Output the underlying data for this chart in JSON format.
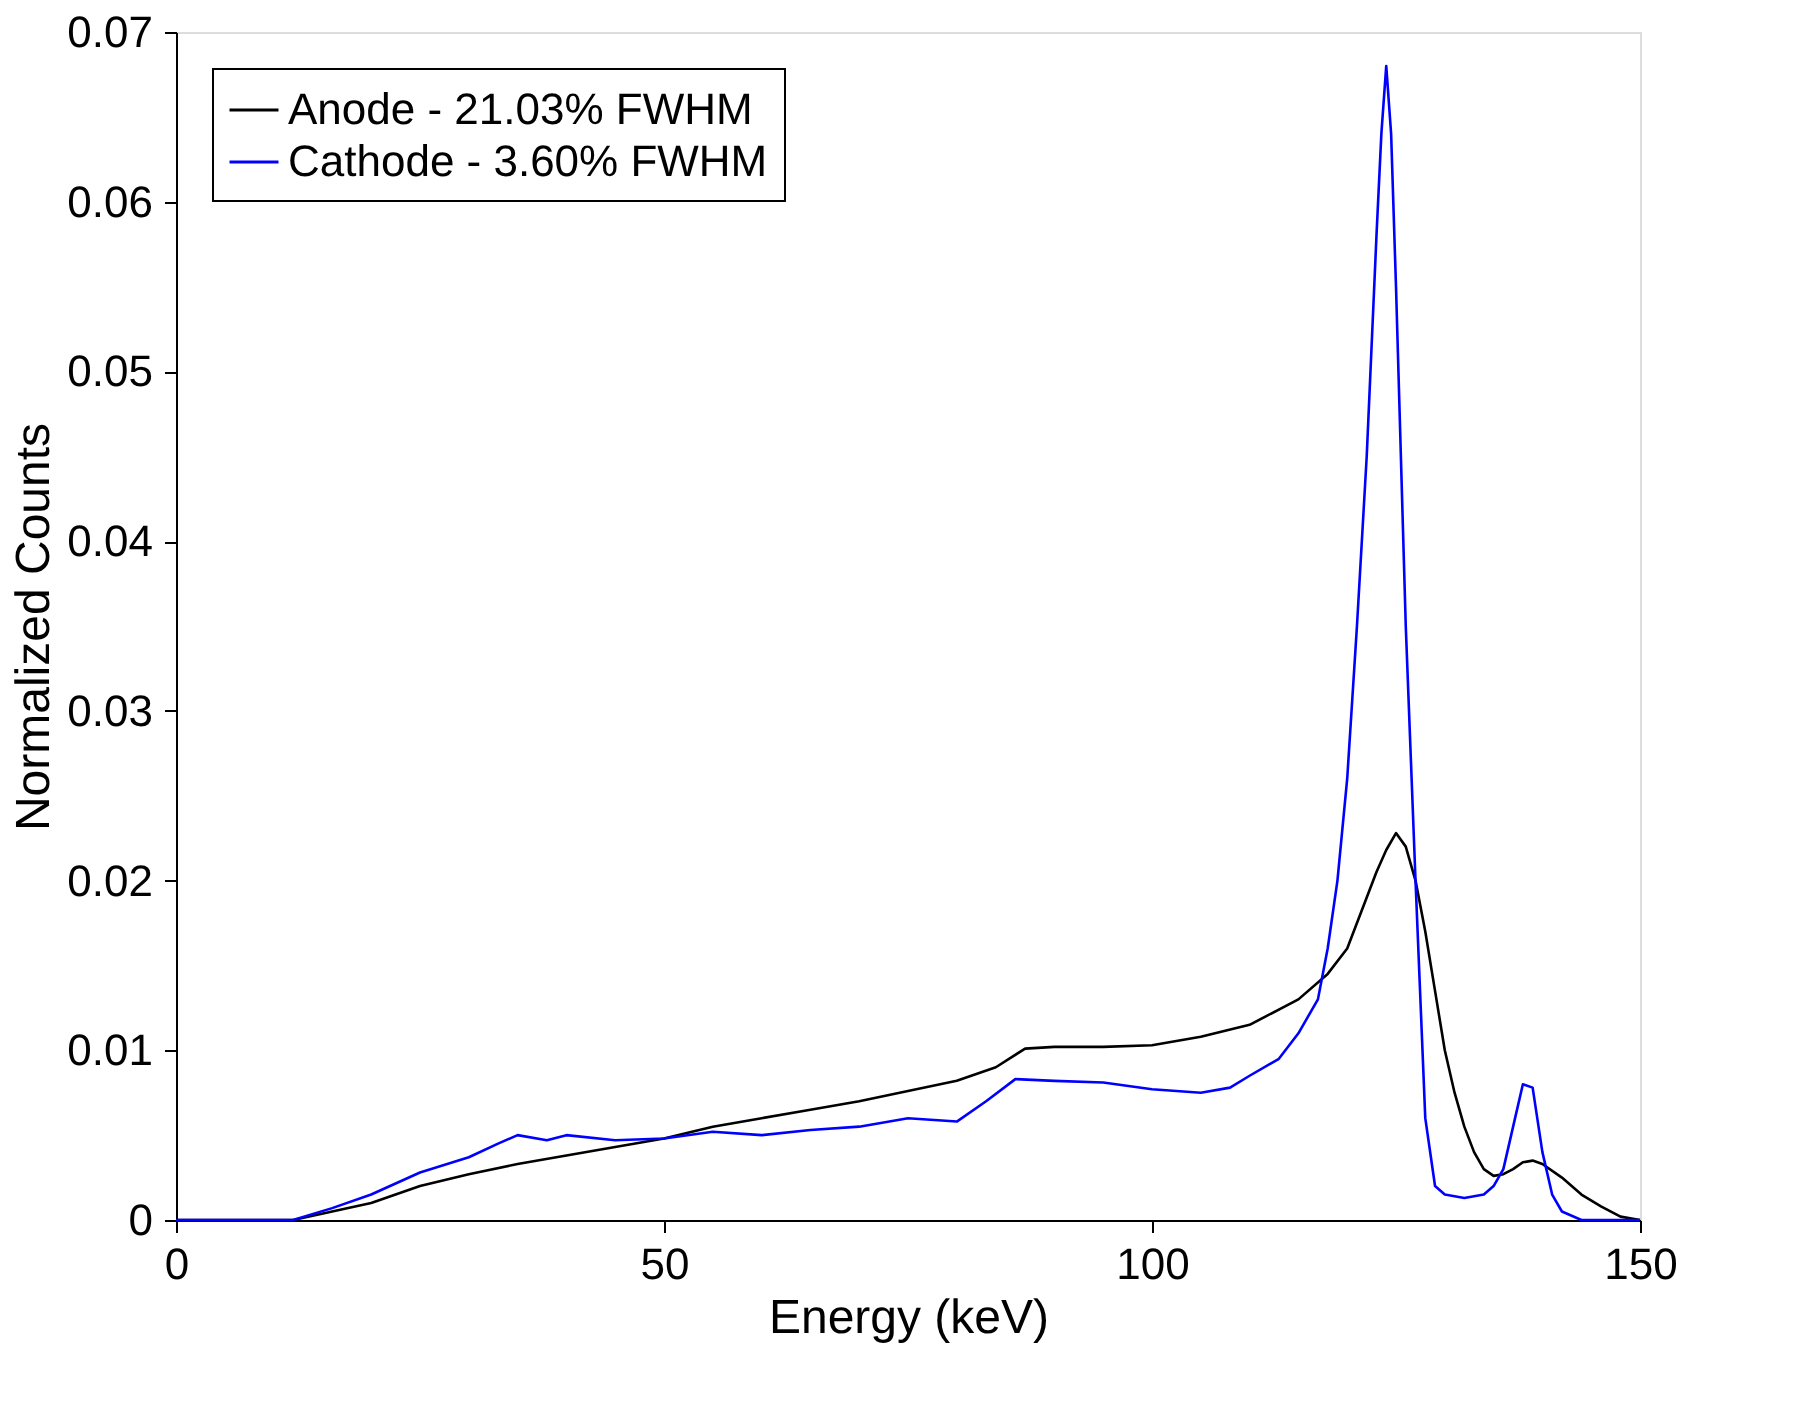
{
  "chart_data": {
    "type": "line",
    "xlabel": "Energy (keV)",
    "ylabel": "Normalized Counts",
    "xlim": [
      0,
      150
    ],
    "xticks": [
      0,
      50,
      100,
      150
    ],
    "ylim": [
      0,
      0.07
    ],
    "yticks": [
      0,
      0.01,
      0.02,
      0.03,
      0.04,
      0.05,
      0.06,
      0.07
    ],
    "grid": false,
    "legend": "top left",
    "marker": "none",
    "line_style": "solid",
    "series": [
      {
        "name": "Anode - 21.03% FWHM",
        "color": "#000000",
        "x": [
          0,
          12,
          16,
          20,
          25,
          30,
          35,
          40,
          45,
          50,
          55,
          60,
          65,
          70,
          75,
          80,
          84,
          87,
          90,
          95,
          100,
          105,
          110,
          115,
          118,
          120,
          122,
          123,
          124,
          125,
          126,
          127,
          128,
          129,
          130,
          131,
          132,
          133,
          134,
          135,
          136,
          137,
          138,
          139,
          140,
          142,
          144,
          146,
          148,
          150
        ],
        "values": [
          0,
          0,
          0.0005,
          0.001,
          0.002,
          0.0027,
          0.0033,
          0.0038,
          0.0043,
          0.0048,
          0.0055,
          0.006,
          0.0065,
          0.007,
          0.0076,
          0.0082,
          0.009,
          0.0101,
          0.0102,
          0.0102,
          0.0103,
          0.0108,
          0.0115,
          0.013,
          0.0145,
          0.016,
          0.019,
          0.0205,
          0.0218,
          0.0228,
          0.022,
          0.02,
          0.017,
          0.0135,
          0.01,
          0.0075,
          0.0055,
          0.004,
          0.003,
          0.0026,
          0.0027,
          0.003,
          0.0034,
          0.0035,
          0.0033,
          0.0025,
          0.0015,
          0.0008,
          0.0002,
          0
        ]
      },
      {
        "name": "Cathode - 3.60% FWHM",
        "color": "#0000ff",
        "x": [
          0,
          12,
          16,
          20,
          25,
          30,
          33,
          35,
          38,
          40,
          45,
          50,
          55,
          60,
          65,
          70,
          75,
          80,
          83,
          86,
          90,
          95,
          100,
          105,
          108,
          110,
          113,
          115,
          117,
          118,
          119,
          120,
          121,
          122,
          123,
          123.5,
          124,
          124.5,
          125,
          125.5,
          126,
          127,
          128,
          129,
          130,
          132,
          134,
          135,
          136,
          137,
          138,
          139,
          140,
          141,
          142,
          144,
          146,
          150
        ],
        "values": [
          0,
          0,
          0.0007,
          0.0015,
          0.0028,
          0.0037,
          0.0045,
          0.005,
          0.0047,
          0.005,
          0.0047,
          0.0048,
          0.0052,
          0.005,
          0.0053,
          0.0055,
          0.006,
          0.0058,
          0.007,
          0.0083,
          0.0082,
          0.0081,
          0.0077,
          0.0075,
          0.0078,
          0.0085,
          0.0095,
          0.011,
          0.013,
          0.016,
          0.02,
          0.026,
          0.035,
          0.045,
          0.058,
          0.064,
          0.068,
          0.064,
          0.055,
          0.045,
          0.035,
          0.02,
          0.006,
          0.002,
          0.0015,
          0.0013,
          0.0015,
          0.002,
          0.003,
          0.0055,
          0.008,
          0.0078,
          0.004,
          0.0015,
          0.0005,
          0,
          0,
          0
        ]
      }
    ]
  }
}
